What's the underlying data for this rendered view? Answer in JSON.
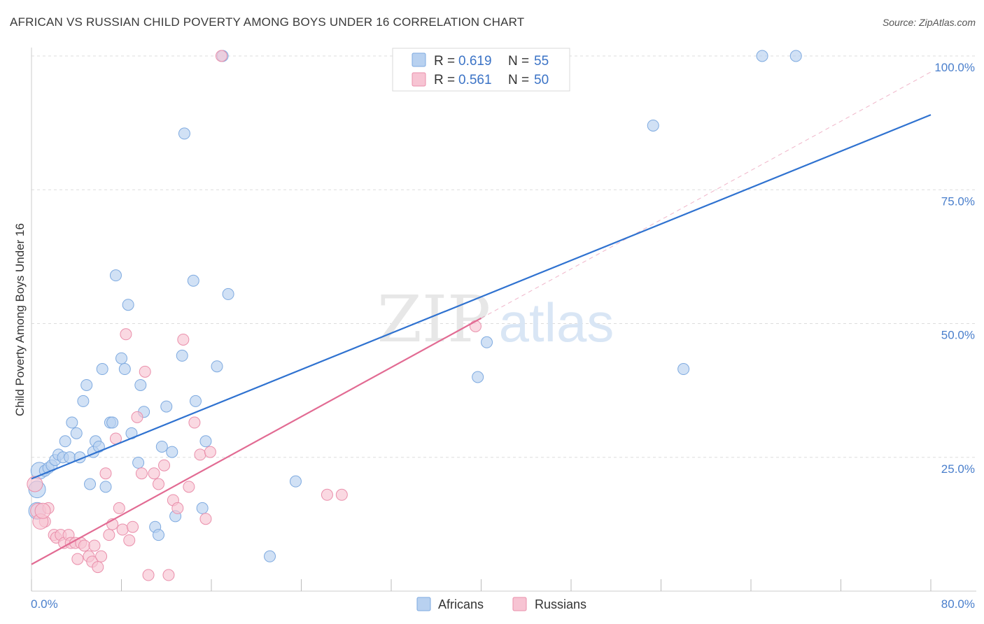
{
  "header": {
    "title": "AFRICAN VS RUSSIAN CHILD POVERTY AMONG BOYS UNDER 16 CORRELATION CHART",
    "source": "Source: ZipAtlas.com"
  },
  "watermark": {
    "zip": "ZIP",
    "atlas": "atlas"
  },
  "colors": {
    "africans_fill": "#b8d1f0",
    "africans_stroke": "#7eaae0",
    "africans_line": "#2f72d0",
    "russians_fill": "#f7c4d3",
    "russians_stroke": "#ea8fab",
    "russians_line": "#e26b93",
    "axis_label": "#4a7fcc",
    "grid": "#dddddd"
  },
  "legend": {
    "rows": [
      {
        "r_label": "R =",
        "r_value": "0.619",
        "n_label": "N =",
        "n_value": "55"
      },
      {
        "r_label": "R =",
        "r_value": "0.561",
        "n_label": "N =",
        "n_value": "50"
      }
    ]
  },
  "bottom_legend": {
    "items": [
      "Africans",
      "Russians"
    ]
  },
  "chart_data": {
    "type": "scatter",
    "title": "AFRICAN VS RUSSIAN CHILD POVERTY AMONG BOYS UNDER 16 CORRELATION CHART",
    "xlabel": "",
    "ylabel": "Child Poverty Among Boys Under 16",
    "xlim": [
      0,
      80
    ],
    "ylim": [
      0,
      100
    ],
    "x_tick_labels": [
      "0.0%",
      "80.0%"
    ],
    "y_tick_labels": [
      "25.0%",
      "50.0%",
      "75.0%",
      "100.0%"
    ],
    "y_ticks": [
      25,
      50,
      75,
      100
    ],
    "grid": true,
    "legend_position": "top-center",
    "series": [
      {
        "name": "Africans",
        "R": 0.619,
        "N": 55,
        "trend": {
          "x": [
            0,
            80
          ],
          "y": [
            21,
            89
          ]
        },
        "points": [
          [
            0.5,
            19
          ],
          [
            0.7,
            22.5
          ],
          [
            1.2,
            22.5
          ],
          [
            1.5,
            23
          ],
          [
            1.8,
            23.5
          ],
          [
            2.1,
            24.5
          ],
          [
            2.4,
            25.5
          ],
          [
            2.8,
            25
          ],
          [
            3.0,
            28
          ],
          [
            3.4,
            25
          ],
          [
            3.6,
            31.5
          ],
          [
            4.0,
            29.5
          ],
          [
            4.3,
            25
          ],
          [
            4.6,
            35.5
          ],
          [
            4.9,
            38.5
          ],
          [
            5.2,
            20
          ],
          [
            5.5,
            26
          ],
          [
            5.7,
            28
          ],
          [
            6.0,
            27
          ],
          [
            6.3,
            41.5
          ],
          [
            6.6,
            19.5
          ],
          [
            7.0,
            31.5
          ],
          [
            7.2,
            31.5
          ],
          [
            7.5,
            59
          ],
          [
            8.0,
            43.5
          ],
          [
            8.3,
            41.5
          ],
          [
            8.6,
            53.5
          ],
          [
            8.9,
            29.5
          ],
          [
            9.5,
            24
          ],
          [
            9.7,
            38.5
          ],
          [
            10.0,
            33.5
          ],
          [
            11.0,
            12
          ],
          [
            11.3,
            10.5
          ],
          [
            11.6,
            27
          ],
          [
            12.0,
            34.5
          ],
          [
            12.5,
            26
          ],
          [
            12.8,
            14
          ],
          [
            13.4,
            44
          ],
          [
            13.6,
            85.5
          ],
          [
            14.4,
            58
          ],
          [
            14.6,
            35.5
          ],
          [
            15.2,
            15.5
          ],
          [
            15.5,
            28
          ],
          [
            16.5,
            42
          ],
          [
            17.0,
            100
          ],
          [
            17.5,
            55.5
          ],
          [
            21.2,
            6.5
          ],
          [
            23.5,
            20.5
          ],
          [
            39.7,
            40
          ],
          [
            40.5,
            46.5
          ],
          [
            55.3,
            87
          ],
          [
            58.0,
            41.5
          ],
          [
            65.0,
            100
          ],
          [
            68.0,
            100
          ],
          [
            0.5,
            15
          ]
        ]
      },
      {
        "name": "Russians",
        "R": 0.561,
        "N": 50,
        "trend": {
          "x": [
            0,
            40
          ],
          "y": [
            5,
            51
          ]
        },
        "trend_extension": {
          "x": [
            40,
            80
          ],
          "y": [
            51,
            97
          ]
        },
        "points": [
          [
            0.3,
            20
          ],
          [
            0.6,
            15
          ],
          [
            1.2,
            13
          ],
          [
            1.5,
            15.5
          ],
          [
            2.0,
            10.5
          ],
          [
            2.2,
            10
          ],
          [
            2.6,
            10.5
          ],
          [
            2.9,
            9
          ],
          [
            3.3,
            10.5
          ],
          [
            3.5,
            9
          ],
          [
            3.9,
            9
          ],
          [
            4.1,
            6
          ],
          [
            4.4,
            9
          ],
          [
            4.7,
            8.5
          ],
          [
            5.1,
            6.5
          ],
          [
            5.4,
            5.5
          ],
          [
            5.6,
            8.5
          ],
          [
            5.9,
            4.5
          ],
          [
            6.2,
            6.5
          ],
          [
            6.6,
            22
          ],
          [
            6.9,
            10.5
          ],
          [
            7.2,
            12.5
          ],
          [
            7.5,
            28.5
          ],
          [
            7.8,
            15.5
          ],
          [
            8.1,
            11.5
          ],
          [
            8.4,
            48
          ],
          [
            8.7,
            9.5
          ],
          [
            9.0,
            12
          ],
          [
            9.4,
            32.5
          ],
          [
            9.8,
            22
          ],
          [
            10.1,
            41
          ],
          [
            10.4,
            3
          ],
          [
            10.9,
            22
          ],
          [
            11.3,
            20
          ],
          [
            11.8,
            23.5
          ],
          [
            12.2,
            3
          ],
          [
            12.6,
            17
          ],
          [
            13.0,
            15.5
          ],
          [
            13.5,
            47
          ],
          [
            14.0,
            19.5
          ],
          [
            14.5,
            31.5
          ],
          [
            15.0,
            25.5
          ],
          [
            15.5,
            13.5
          ],
          [
            15.9,
            26
          ],
          [
            16.9,
            100
          ],
          [
            26.3,
            18
          ],
          [
            27.6,
            18
          ],
          [
            39.5,
            49.5
          ],
          [
            0.8,
            13
          ],
          [
            1.0,
            15
          ]
        ]
      }
    ]
  }
}
